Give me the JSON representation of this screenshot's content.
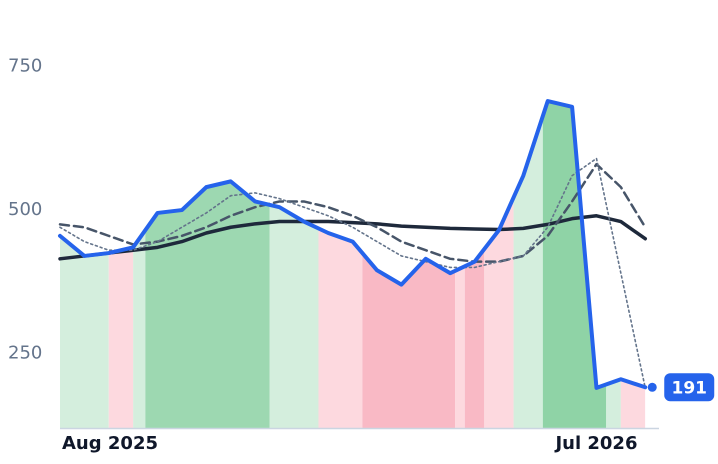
{
  "chart_data": {
    "type": "line",
    "x": [
      0,
      0.5,
      1,
      1.5,
      2,
      2.5,
      3,
      3.5,
      4,
      4.5,
      5,
      5.5,
      6,
      6.5,
      7,
      7.5,
      8,
      8.5,
      9,
      9.5,
      10,
      10.5,
      11,
      11.5,
      12
    ],
    "series": [
      {
        "color": "#2563eb",
        "style": "solid",
        "width": 4,
        "values": [
          455,
          420,
          425,
          435,
          495,
          500,
          540,
          550,
          515,
          505,
          480,
          460,
          445,
          395,
          370,
          415,
          390,
          410,
          465,
          560,
          690,
          680,
          190,
          205,
          191
        ]
      },
      {
        "color": "#64748b",
        "style": "dotted",
        "width": 1.6,
        "values": [
          470,
          445,
          430,
          430,
          445,
          470,
          495,
          525,
          530,
          520,
          505,
          490,
          470,
          445,
          420,
          410,
          400,
          400,
          410,
          420,
          470,
          560,
          590,
          390,
          190
        ]
      },
      {
        "color": "#475569",
        "style": "dashed",
        "width": 2.5,
        "values": [
          475,
          470,
          455,
          440,
          445,
          455,
          470,
          490,
          505,
          515,
          515,
          505,
          490,
          470,
          445,
          430,
          415,
          410,
          410,
          420,
          455,
          515,
          580,
          540,
          470
        ]
      },
      {
        "color": "#1e293b",
        "style": "solid",
        "width": 3.5,
        "values": [
          415,
          420,
          425,
          430,
          435,
          445,
          460,
          470,
          476,
          480,
          480,
          480,
          478,
          476,
          472,
          470,
          468,
          467,
          466,
          468,
          475,
          485,
          490,
          480,
          450
        ]
      }
    ],
    "regions": [
      {
        "x0": 0,
        "x1": 1.0,
        "color": "#d4eedd"
      },
      {
        "x0": 1.0,
        "x1": 1.5,
        "color": "#fdd9df"
      },
      {
        "x0": 1.5,
        "x1": 1.75,
        "color": "#d4eedd"
      },
      {
        "x0": 1.75,
        "x1": 4.3,
        "color": "#9dd8b1"
      },
      {
        "x0": 4.3,
        "x1": 5.3,
        "color": "#d4eedd"
      },
      {
        "x0": 5.3,
        "x1": 6.2,
        "color": "#fdd9df"
      },
      {
        "x0": 6.2,
        "x1": 8.1,
        "color": "#f9b9c5"
      },
      {
        "x0": 8.1,
        "x1": 8.3,
        "color": "#fdd9df"
      },
      {
        "x0": 8.3,
        "x1": 8.7,
        "color": "#f9b9c5"
      },
      {
        "x0": 8.7,
        "x1": 9.3,
        "color": "#fdd9df"
      },
      {
        "x0": 9.3,
        "x1": 9.9,
        "color": "#d4eedd"
      },
      {
        "x0": 9.9,
        "x1": 11.2,
        "color": "#8fd3a6"
      },
      {
        "x0": 11.2,
        "x1": 11.5,
        "color": "#d4eedd"
      },
      {
        "x0": 11.5,
        "x1": 12,
        "color": "#fdd9df"
      }
    ],
    "xlim": [
      0,
      12.2
    ],
    "xticks": [
      {
        "value": 0,
        "label": "Aug 2025"
      },
      {
        "value": 11,
        "label": "Jul 2026"
      }
    ],
    "ylim": [
      120,
      800
    ],
    "yticks": [
      250,
      500,
      750
    ],
    "grid": false
  }
}
